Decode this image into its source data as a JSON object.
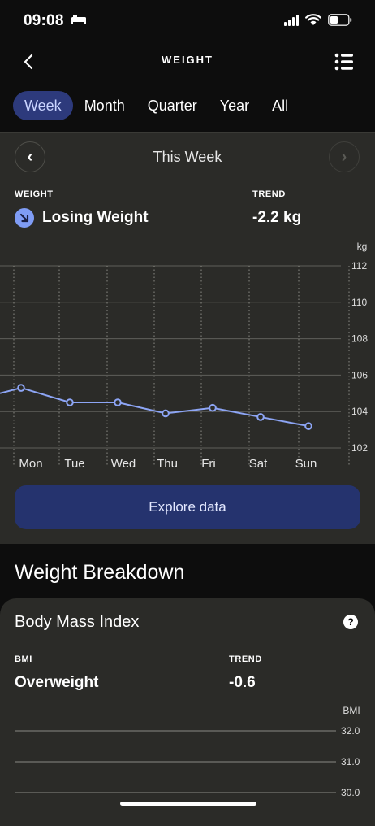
{
  "status_bar": {
    "time": "09:08",
    "icons": [
      "bed-icon",
      "signal-icon",
      "wifi-icon",
      "battery-icon"
    ]
  },
  "nav": {
    "title": "WEIGHT",
    "icons": [
      "back-chevron-icon",
      "list-icon"
    ]
  },
  "tabs": [
    {
      "label": "Week",
      "active": true
    },
    {
      "label": "Month",
      "active": false
    },
    {
      "label": "Quarter",
      "active": false
    },
    {
      "label": "Year",
      "active": false
    },
    {
      "label": "All",
      "active": false
    }
  ],
  "period": {
    "label": "This Week",
    "prev_glyph": "‹",
    "next_glyph": "›"
  },
  "weight_summary": {
    "label": "WEIGHT",
    "value": "Losing Weight",
    "trend_label": "TREND",
    "trend_value": "-2.2 kg",
    "icon": "arrow-down-right-icon"
  },
  "chart_data": {
    "type": "line",
    "unit": "kg",
    "categories": [
      "Mon",
      "Tue",
      "Wed",
      "Thu",
      "Fri",
      "Sat",
      "Sun"
    ],
    "series": [
      {
        "values": [
          105.3,
          104.5,
          104.5,
          103.9,
          104.2,
          103.7,
          103.2
        ]
      }
    ],
    "carry_in_value": 105.0,
    "ylim": [
      102,
      112
    ],
    "yticks": [
      112,
      110,
      108,
      106,
      104,
      102
    ],
    "grid": true,
    "line_color": "#8da5f5"
  },
  "explore_button": {
    "label": "Explore data"
  },
  "breakdown": {
    "title": "Weight Breakdown"
  },
  "bmi": {
    "title": "Body Mass Index",
    "help_glyph": "?",
    "label": "BMI",
    "value": "Overweight",
    "trend_label": "TREND",
    "trend_value": "-0.6",
    "axis_unit": "BMI",
    "yticks": [
      "32.0",
      "31.0",
      "30.0"
    ]
  }
}
